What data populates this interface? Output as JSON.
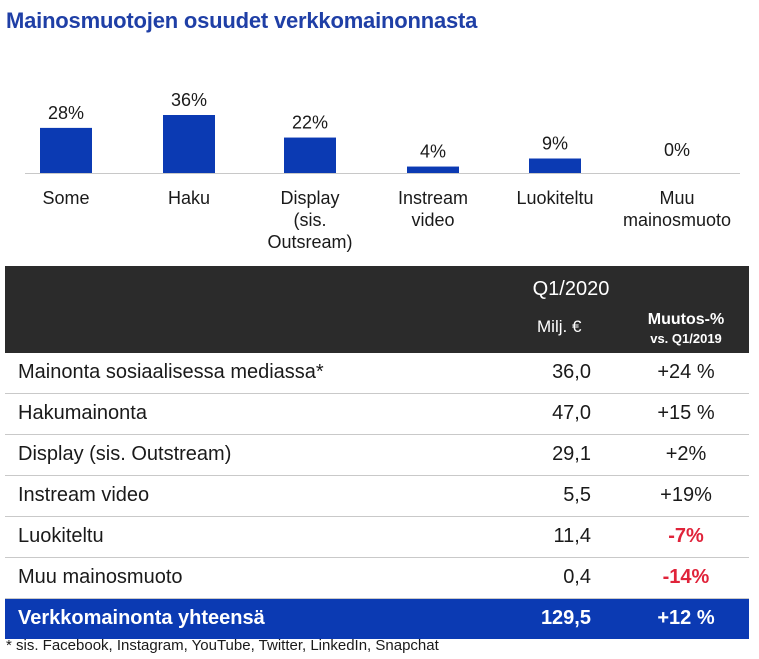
{
  "title": "Mainosmuotojen osuudet verkkomainonnasta",
  "chart_data": {
    "type": "bar",
    "categories": [
      "Some",
      "Haku",
      "Display (sis. Outsream)",
      "Instream video",
      "Luokiteltu",
      "Muu mainosmuoto"
    ],
    "values": [
      28,
      36,
      22,
      4,
      9,
      0
    ],
    "value_labels": [
      "28%",
      "36%",
      "22%",
      "4%",
      "9%",
      "0%"
    ],
    "unit": "%",
    "ylim": [
      0,
      36
    ],
    "color": "#0b3ab3",
    "grid": false,
    "legend": "none"
  },
  "categories_display": [
    [
      "Some"
    ],
    [
      "Haku"
    ],
    [
      "Display",
      "(sis.",
      "Outsream)"
    ],
    [
      "Instream",
      "video"
    ],
    [
      "Luokiteltu"
    ],
    [
      "Muu",
      "mainosmuoto"
    ]
  ],
  "table": {
    "period": "Q1/2020",
    "col_value": "Milj. €",
    "col_change_line1": "Muutos-%",
    "col_change_line2": "vs. Q1/2019",
    "rows": [
      {
        "label": "Mainonta sosiaalisessa mediassa*",
        "value": "36,0",
        "change": "+24 %",
        "negative": false
      },
      {
        "label": "Hakumainonta",
        "value": "47,0",
        "change": "+15 %",
        "negative": false
      },
      {
        "label": "Display (sis. Outstream)",
        "value": "29,1",
        "change": "+2%",
        "negative": false
      },
      {
        "label": "Instream video",
        "value": "5,5",
        "change": "+19%",
        "negative": false
      },
      {
        "label": "Luokiteltu",
        "value": "11,4",
        "change": "-7%",
        "negative": true
      },
      {
        "label": "Muu mainosmuoto",
        "value": "0,4",
        "change": "-14%",
        "negative": true
      }
    ],
    "total": {
      "label": "Verkkomainonta yhteensä",
      "value": "129,5",
      "change": "+12 %"
    }
  },
  "footnote": "* sis. Facebook, Instagram, YouTube, Twitter, LinkedIn, Snapchat",
  "colors": {
    "title": "#1f3fa6",
    "bar": "#0b3ab3",
    "header_bg": "#2b2b2b",
    "total_bg": "#0b3ab3",
    "negative": "#e0233a"
  }
}
